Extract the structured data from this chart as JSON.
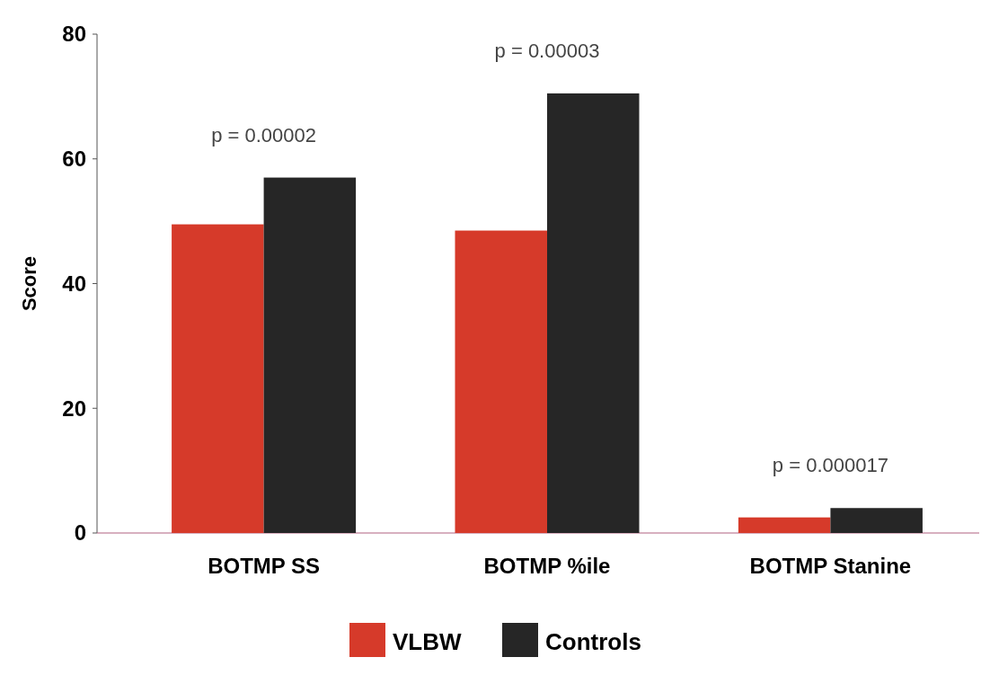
{
  "chart_data": {
    "type": "bar",
    "ylabel": "Score",
    "categories": [
      "BOTMP SS",
      "BOTMP %ile",
      "BOTMP Stanine"
    ],
    "series": [
      {
        "name": "VLBW",
        "color": "#d63a2a",
        "values": [
          49.5,
          48.5,
          2.5
        ]
      },
      {
        "name": "Controls",
        "color": "#262626",
        "values": [
          57,
          70.5,
          4
        ]
      }
    ],
    "ylim": [
      0,
      80
    ],
    "yticks": [
      0,
      20,
      40,
      60,
      80
    ],
    "legend": "bottom",
    "grid": false,
    "annotations": [
      "p = 0.00002",
      "p = 0.00003",
      "p = 0.000017"
    ]
  }
}
